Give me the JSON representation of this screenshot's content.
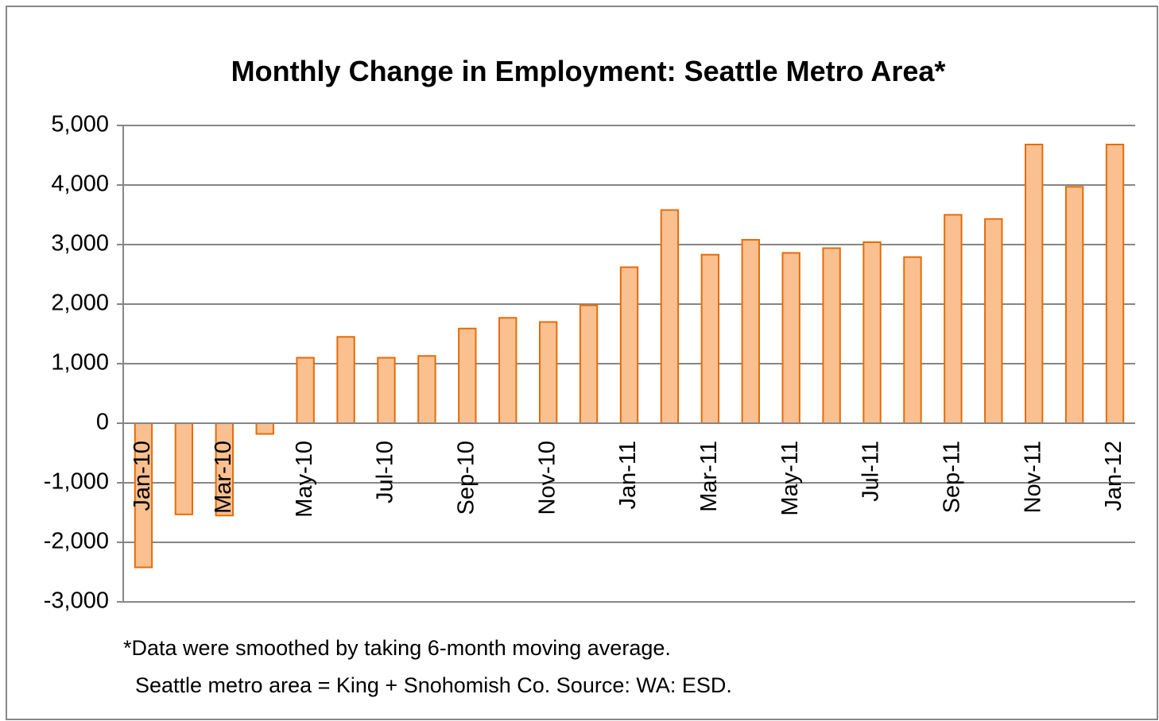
{
  "chart_data": {
    "type": "bar",
    "title": "Monthly Change in Employment: Seattle Metro Area*",
    "notes": [
      "*Data were smoothed  by taking 6-month moving average.",
      "Seattle metro area = King + Snohomish Co.  Source: WA: ESD."
    ],
    "categories": [
      "Jan-10",
      null,
      "Mar-10",
      null,
      "May-10",
      null,
      "Jul-10",
      null,
      "Sep-10",
      null,
      "Nov-10",
      null,
      "Jan-11",
      null,
      "Mar-11",
      null,
      "May-11",
      null,
      "Jul-11",
      null,
      "Sep-11",
      null,
      "Nov-11",
      null,
      "Jan-12"
    ],
    "values": [
      -2420,
      -1530,
      -1550,
      -180,
      1100,
      1450,
      1100,
      1130,
      1590,
      1770,
      1700,
      1980,
      2620,
      3580,
      2830,
      3080,
      2860,
      2940,
      3040,
      2790,
      3500,
      3430,
      4680,
      3970,
      4680
    ],
    "color": "#fac090",
    "edge_color": "#e46c0a",
    "ylim": [
      -3000,
      5000
    ],
    "yticks": [
      {
        "value": -3000,
        "label": "-3,000"
      },
      {
        "value": -2000,
        "label": "-2,000"
      },
      {
        "value": -1000,
        "label": "-1,000"
      },
      0,
      {
        "value": 1000,
        "label": "1,000"
      },
      {
        "value": 2000,
        "label": "2,000"
      },
      {
        "value": 3000,
        "label": "3,000"
      },
      {
        "value": 4000,
        "label": "4,000"
      },
      {
        "value": 5000,
        "label": "5,000"
      }
    ],
    "grid": true
  }
}
